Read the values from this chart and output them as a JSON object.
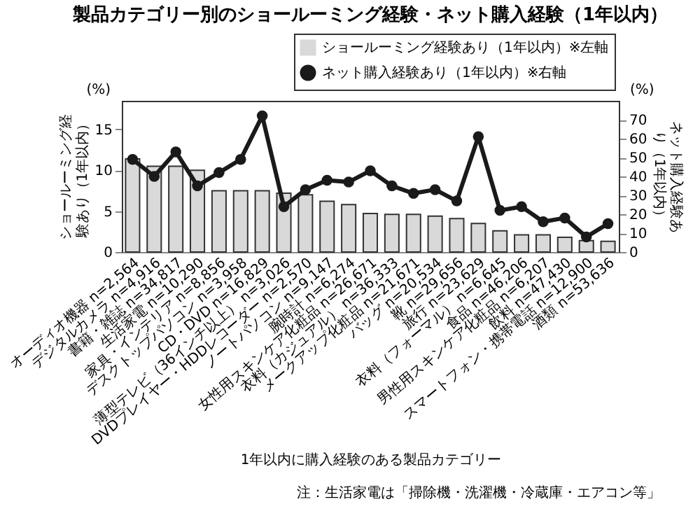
{
  "chart_data": {
    "type": "bar",
    "title": "製品カテゴリー別のショールーミング経験・ネット購入経験（1年以内）",
    "xlabel": "1年以内に購入経験のある製品カテゴリー",
    "ylabel": "ショールーミング経験あり（1年以内）",
    "y2label": "ネット購入経験あり（1年以内）",
    "categories": [
      "オーディオ機器 n=2,564",
      "デジタルカメラ n=4,916",
      "書籍・雑誌 n=34,817",
      "生活家電 n=10,290",
      "家具・インテリア n=8,856",
      "デスクトップパソコン n=3,958",
      "CD・DVD n=16,829",
      "薄型テレビ（36インチ以上） n=3,026",
      "DVDプレイヤー・HDDレコーダー n=2,570",
      "ノートパソコン n=9,147",
      "腕時計 n=6,274",
      "女性用スキンケア化粧品 n=26,671",
      "衣料（カジュアル） n=36,333",
      "メークアップ化粧品 n=21,671",
      "バッグ n=20,534",
      "靴 n=29,656",
      "旅行 n=23,629",
      "衣料（フォーマル） n=6,645",
      "食品 n=46,206",
      "男性用スキンケア化粧品 n=6,207",
      "飲料 n=47,430",
      "スマートフォン・携帯電話 n=12,900",
      "酒類 n=53,636"
    ],
    "series": [
      {
        "name": "ショールーミング経験あり（1年以内）※左軸",
        "color": "#d9d9d9",
        "values": [
          11.4,
          10.5,
          10.5,
          10.0,
          7.5,
          7.5,
          7.5,
          7.2,
          7.0,
          6.2,
          5.8,
          4.7,
          4.6,
          4.6,
          4.4,
          4.1,
          3.5,
          2.6,
          2.1,
          2.1,
          1.8,
          1.4,
          1.3
        ]
      },
      {
        "name": "ネット購入経験あり（1年以内）※右軸",
        "type": "line",
        "axis": "y2",
        "color": "#1a1a1a",
        "values": [
          49,
          40,
          53,
          35,
          42,
          49,
          72,
          24,
          33,
          38,
          37,
          43,
          35,
          31,
          33,
          27,
          61,
          22,
          24,
          16,
          18,
          8,
          15
        ]
      }
    ],
    "ylim": [
      0,
      18.5
    ],
    "yticks": [
      0,
      5,
      10,
      15
    ],
    "y2lim": [
      0,
      80
    ],
    "y2ticks": [
      0,
      10,
      20,
      30,
      40,
      50,
      60,
      70
    ],
    "marker": "circle",
    "legend": "top right",
    "annotations": [
      "(%)",
      "(%)",
      "注：生活家電は「掃除機・洗濯機・冷蔵庫・エアコン等」"
    ]
  }
}
